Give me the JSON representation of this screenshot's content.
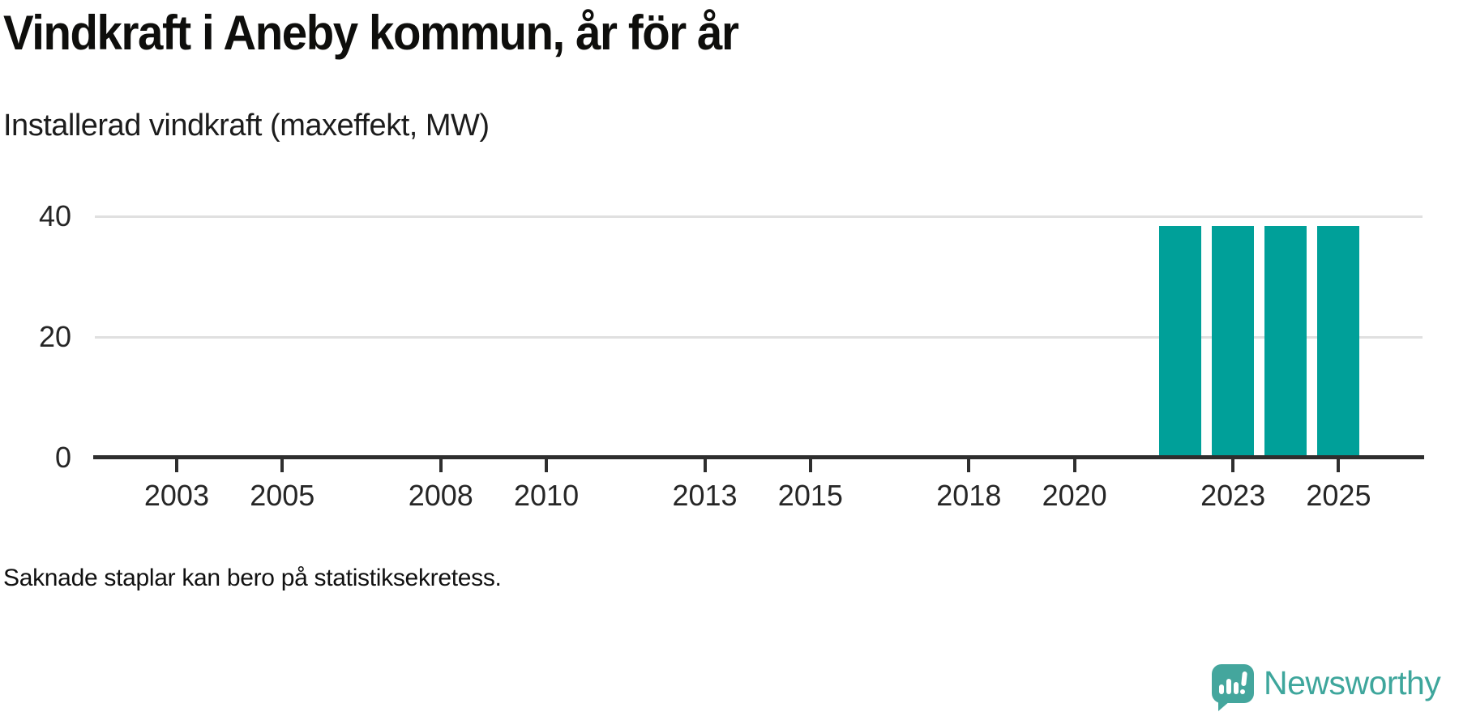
{
  "header": {
    "title": "Vindkraft i Aneby kommun, år för år",
    "subtitle": "Installerad vindkraft (maxeffekt, MW)"
  },
  "footer": {
    "note": "Saknade staplar kan bero på statistiksekretess."
  },
  "branding": {
    "logo_text": "Newsworthy",
    "logo_icon": "newsworthy-speech-bubble-bar-chart-icon",
    "logo_color": "#44a69d"
  },
  "colors": {
    "bar": "#00a099",
    "axis": "#2e2e2e",
    "gridline": "#e0e0e0",
    "text": "#1c1c1c"
  },
  "chart_data": {
    "type": "bar",
    "title": "Vindkraft i Aneby kommun, år för år",
    "subtitle": "Installerad vindkraft (maxeffekt, MW)",
    "unit": "MW",
    "x": [
      2022,
      2023,
      2024,
      2025
    ],
    "values": [
      38.4,
      38.4,
      38.4,
      38.4
    ],
    "missing_bar_years": [
      2002,
      2003,
      2004,
      2005,
      2006,
      2007,
      2008,
      2009,
      2010,
      2011,
      2012,
      2013,
      2014,
      2015,
      2016,
      2017,
      2018,
      2019,
      2020,
      2021
    ],
    "x_ticks": [
      2003,
      2005,
      2008,
      2010,
      2013,
      2015,
      2018,
      2020,
      2023,
      2025
    ],
    "x_tick_labels": [
      "2003",
      "2005",
      "2008",
      "2010",
      "2013",
      "2015",
      "2018",
      "2020",
      "2023",
      "2025"
    ],
    "y_ticks": [
      0,
      20,
      40
    ],
    "y_tick_labels": [
      "0",
      "20",
      "40"
    ],
    "ylim": [
      0,
      40
    ],
    "xlim": [
      2001.42,
      2026.62
    ],
    "grid": "horizontal-only",
    "legend": "none",
    "bar_color": "#00a099",
    "annotation": "Saknade staplar kan bero på statistiksekretess."
  }
}
